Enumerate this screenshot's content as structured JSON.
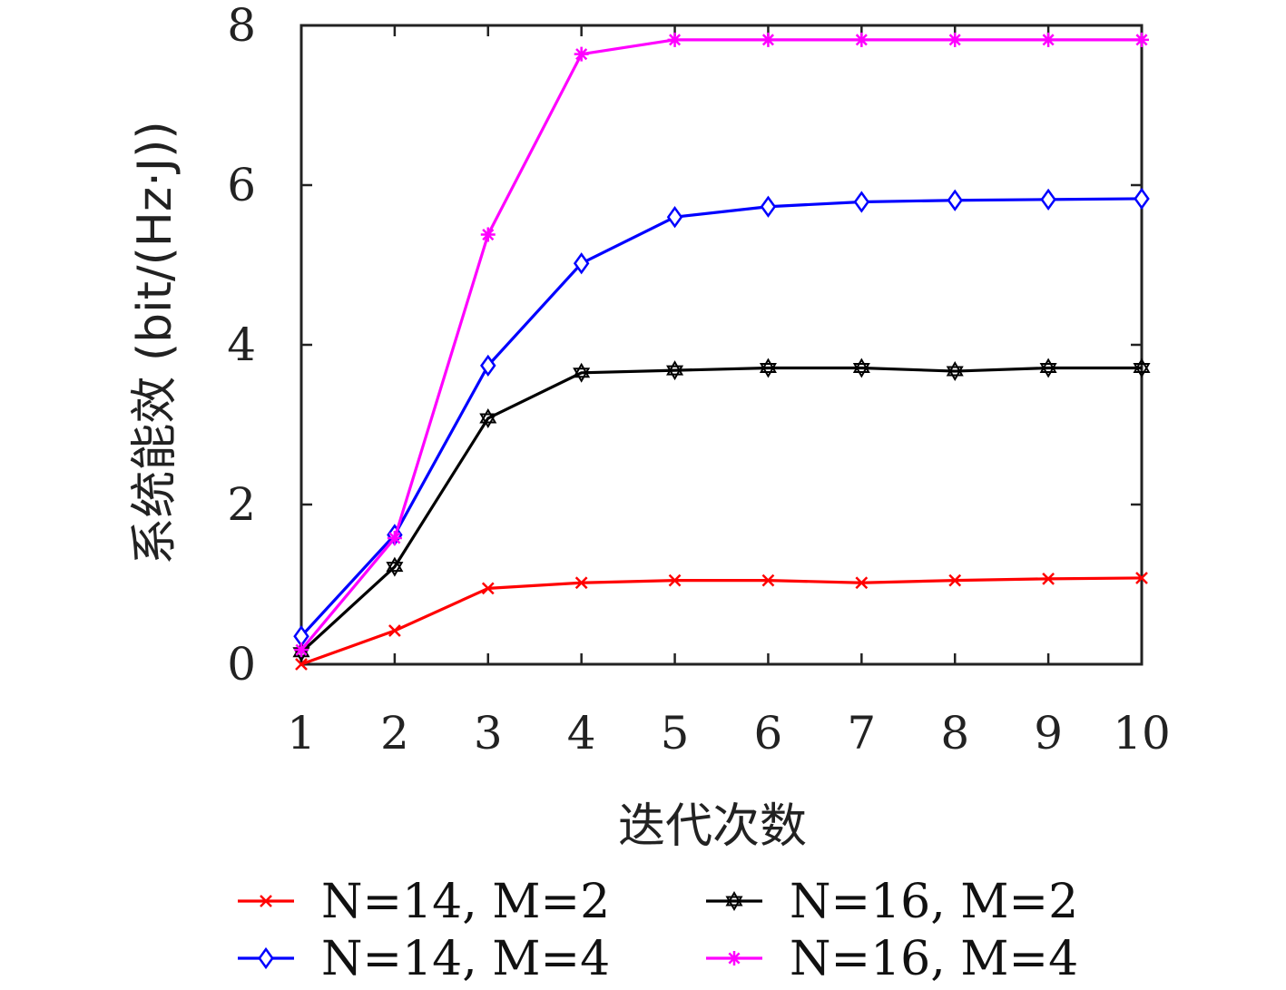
{
  "chart_data": {
    "type": "line",
    "title": "",
    "xlabel": "迭代次数",
    "ylabel": "系统能效 (bit/(Hz·J))",
    "x": [
      1,
      2,
      3,
      4,
      5,
      6,
      7,
      8,
      9,
      10
    ],
    "xlim": [
      1,
      10
    ],
    "ylim": [
      0,
      8
    ],
    "x_ticks": [
      "1",
      "2",
      "3",
      "4",
      "5",
      "6",
      "7",
      "8",
      "9",
      "10"
    ],
    "y_ticks": [
      "0",
      "2",
      "4",
      "6",
      "8"
    ],
    "grid": false,
    "legend_position": "bottom",
    "series": [
      {
        "name": "N=14, M=2",
        "color": "#ff0000",
        "marker": "x",
        "values": [
          0.0,
          0.42,
          0.95,
          1.02,
          1.05,
          1.05,
          1.02,
          1.05,
          1.07,
          1.08
        ]
      },
      {
        "name": "N=14, M=4",
        "color": "#0000ff",
        "marker": "diamond",
        "values": [
          0.35,
          1.62,
          3.74,
          5.02,
          5.6,
          5.73,
          5.79,
          5.81,
          5.82,
          5.83
        ]
      },
      {
        "name": "N=16, M=2",
        "color": "#000000",
        "marker": "hexagram",
        "values": [
          0.15,
          1.22,
          3.08,
          3.65,
          3.68,
          3.71,
          3.71,
          3.67,
          3.71,
          3.71
        ]
      },
      {
        "name": "N=16, M=4",
        "color": "#ff00ff",
        "marker": "asterisk",
        "values": [
          0.18,
          1.58,
          5.38,
          7.64,
          7.82,
          7.82,
          7.82,
          7.82,
          7.82,
          7.82
        ]
      }
    ]
  }
}
